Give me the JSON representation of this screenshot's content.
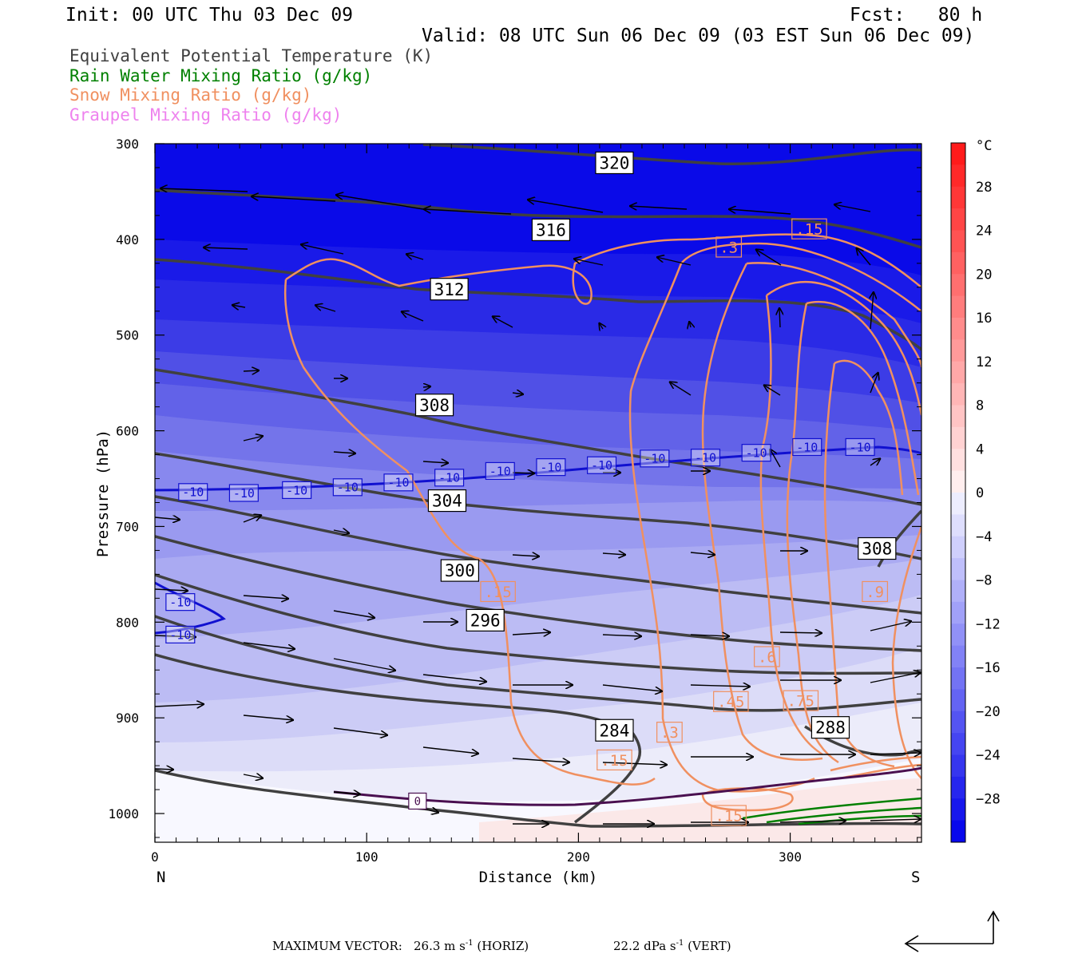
{
  "header": {
    "init": "Init: 00 UTC Thu 03 Dec 09",
    "fcst": "Fcst:   80 h",
    "valid": "Valid: 08 UTC Sun 06 Dec 09 (03 EST Sun 06 Dec 09)"
  },
  "legend": [
    {
      "label": "Equivalent Potential Temperature (K)",
      "color": "#404040"
    },
    {
      "label": "Rain Water Mixing Ratio (g/kg)",
      "color": "#008000"
    },
    {
      "label": "Snow Mixing Ratio (g/kg)",
      "color": "#f09060"
    },
    {
      "label": "Graupel Mixing Ratio (g/kg)",
      "color": "#ee82ee"
    }
  ],
  "chart_data": {
    "type": "cross-section",
    "xlabel": "Distance (km)",
    "ylabel": "Pressure (hPa)",
    "x_ticks": [
      "0",
      "100",
      "200",
      "300"
    ],
    "x_tick_values": [
      0,
      100,
      200,
      300
    ],
    "xlim": [
      0,
      362
    ],
    "y_ticks": [
      "300",
      "400",
      "500",
      "600",
      "700",
      "800",
      "900",
      "1000"
    ],
    "y_tick_values": [
      300,
      400,
      500,
      600,
      700,
      800,
      900,
      1000
    ],
    "ylim": [
      1030,
      300
    ],
    "left_end_label": "N",
    "right_end_label": "S",
    "colorbar": {
      "unit": "°C",
      "tick_labels": [
        "28",
        "24",
        "20",
        "16",
        "12",
        "8",
        "4",
        "0",
        "−4",
        "−8",
        "−12",
        "−16",
        "−20",
        "−24",
        "−28"
      ],
      "tick_values": [
        28,
        24,
        20,
        16,
        12,
        8,
        4,
        0,
        -4,
        -8,
        -12,
        -16,
        -20,
        -24,
        -28
      ],
      "range": [
        -32,
        32
      ]
    },
    "theta_e_contour_labels": [
      {
        "text": "320",
        "x": 217,
        "p": 320
      },
      {
        "text": "316",
        "x": 187,
        "p": 390
      },
      {
        "text": "312",
        "x": 139,
        "p": 452
      },
      {
        "text": "308",
        "x": 132,
        "p": 573
      },
      {
        "text": "304",
        "x": 138,
        "p": 673
      },
      {
        "text": "300",
        "x": 144,
        "p": 746
      },
      {
        "text": "296",
        "x": 156,
        "p": 798
      },
      {
        "text": "284",
        "x": 217,
        "p": 913
      },
      {
        "text": "288",
        "x": 319,
        "p": 910
      },
      {
        "text": "308",
        "x": 341,
        "p": 723
      }
    ],
    "snow_contour_labels": [
      {
        "text": ".3",
        "x": 271,
        "p": 408
      },
      {
        "text": ".15",
        "x": 309,
        "p": 389
      },
      {
        "text": ".15",
        "x": 162,
        "p": 768
      },
      {
        "text": ".6",
        "x": 289,
        "p": 836
      },
      {
        "text": ".45",
        "x": 272,
        "p": 883
      },
      {
        "text": ".75",
        "x": 305,
        "p": 882
      },
      {
        "text": ".9",
        "x": 340,
        "p": 768
      },
      {
        "text": ".3",
        "x": 243,
        "p": 915
      },
      {
        "text": ".15",
        "x": 217,
        "p": 944
      },
      {
        "text": ".15",
        "x": 271,
        "p": 1002
      }
    ],
    "temperature_contour_labels": [
      {
        "text": "-10",
        "x": 18,
        "p": 664
      },
      {
        "text": "-10",
        "x": 42,
        "p": 665
      },
      {
        "text": "-10",
        "x": 67,
        "p": 662
      },
      {
        "text": "-10",
        "x": 91,
        "p": 659
      },
      {
        "text": "-10",
        "x": 115,
        "p": 654
      },
      {
        "text": "-10",
        "x": 139,
        "p": 649
      },
      {
        "text": "-10",
        "x": 163,
        "p": 642
      },
      {
        "text": "-10",
        "x": 187,
        "p": 638
      },
      {
        "text": "-10",
        "x": 211,
        "p": 636
      },
      {
        "text": "-10",
        "x": 236,
        "p": 629
      },
      {
        "text": "-10",
        "x": 260,
        "p": 628
      },
      {
        "text": "-10",
        "x": 284,
        "p": 623
      },
      {
        "text": "-10",
        "x": 308,
        "p": 617
      },
      {
        "text": "-10",
        "x": 333,
        "p": 617
      },
      {
        "text": "-10",
        "x": 12,
        "p": 779
      },
      {
        "text": "-10",
        "x": 12,
        "p": 813
      }
    ],
    "graupel_contour_labels": [
      {
        "text": "0",
        "x": 124,
        "p": 987
      }
    ]
  },
  "footer": {
    "max_vector_label": "MAXIMUM VECTOR:",
    "horiz_value": "26.3 m s",
    "horiz_exp": "-1",
    "horiz_tag": " (HORIZ)",
    "vert_value": "22.2 dPa s",
    "vert_exp": "-1",
    "vert_tag": " (VERT)"
  }
}
